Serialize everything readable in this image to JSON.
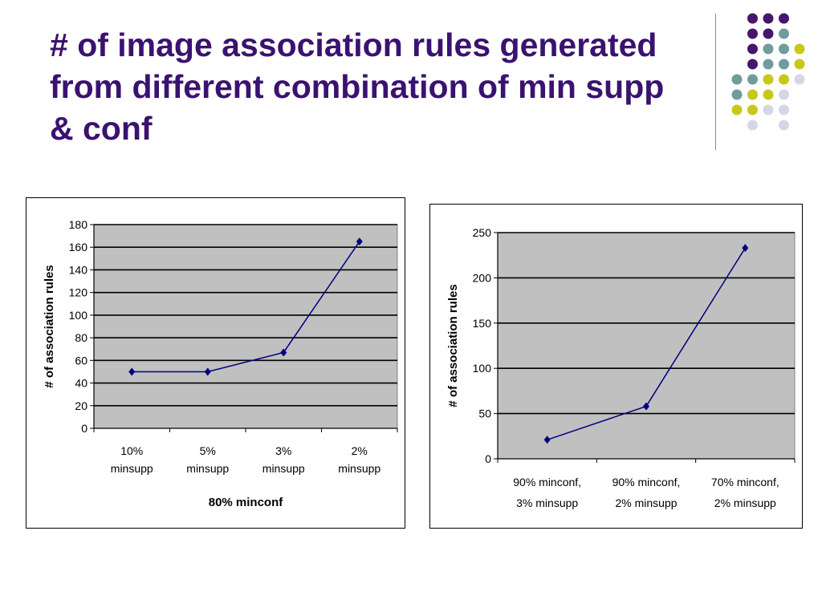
{
  "slide": {
    "title": "# of image association rules generated from different combination of min supp & conf"
  },
  "decoration": {
    "dot_colors": [
      "#46166f",
      "#6f9c9c",
      "#c8c81a",
      "#d6d6e8"
    ],
    "dot_grid": [
      [
        null,
        "#46166f",
        "#46166f",
        "#46166f"
      ],
      [
        null,
        "#46166f",
        "#46166f",
        "#6f9c9c"
      ],
      [
        null,
        "#46166f",
        "#6f9c9c",
        "#6f9c9c",
        "#c8c81a"
      ],
      [
        null,
        "#46166f",
        "#6f9c9c",
        "#6f9c9c",
        "#c8c81a"
      ],
      [
        "#6f9c9c",
        "#6f9c9c",
        "#c8c81a",
        "#c8c81a",
        "#d6d6e8"
      ],
      [
        "#6f9c9c",
        "#c8c81a",
        "#c8c81a",
        "#d6d6e8"
      ],
      [
        "#c8c81a",
        "#c8c81a",
        "#d6d6e8",
        "#d6d6e8"
      ],
      [
        null,
        "#d6d6e8",
        null,
        "#d6d6e8"
      ]
    ]
  },
  "chart_data": [
    {
      "type": "line",
      "categories": [
        [
          "10%",
          "minsupp"
        ],
        [
          "5%",
          "minsupp"
        ],
        [
          "3%",
          "minsupp"
        ],
        [
          "2%",
          "minsupp"
        ]
      ],
      "values": [
        50,
        50,
        67,
        165
      ],
      "ylim": [
        0,
        180
      ],
      "yticks": [
        "0",
        "20",
        "40",
        "60",
        "80",
        "100",
        "120",
        "140",
        "160",
        "180"
      ],
      "xlabel": "80% minconf",
      "ylabel": "# of association rules",
      "grid": true,
      "plot_bg": "#c0c0c0",
      "line_color": "#000080"
    },
    {
      "type": "line",
      "categories": [
        [
          "90% minconf,",
          "3% minsupp"
        ],
        [
          "90% minconf,",
          "2% minsupp"
        ],
        [
          "70% minconf,",
          "2% minsupp"
        ]
      ],
      "values": [
        21,
        58,
        233
      ],
      "ylim": [
        0,
        250
      ],
      "yticks": [
        "0",
        "50",
        "100",
        "150",
        "200",
        "250"
      ],
      "xlabel": "",
      "ylabel": "# of association rules",
      "grid": true,
      "plot_bg": "#c0c0c0",
      "line_color": "#000080"
    }
  ]
}
